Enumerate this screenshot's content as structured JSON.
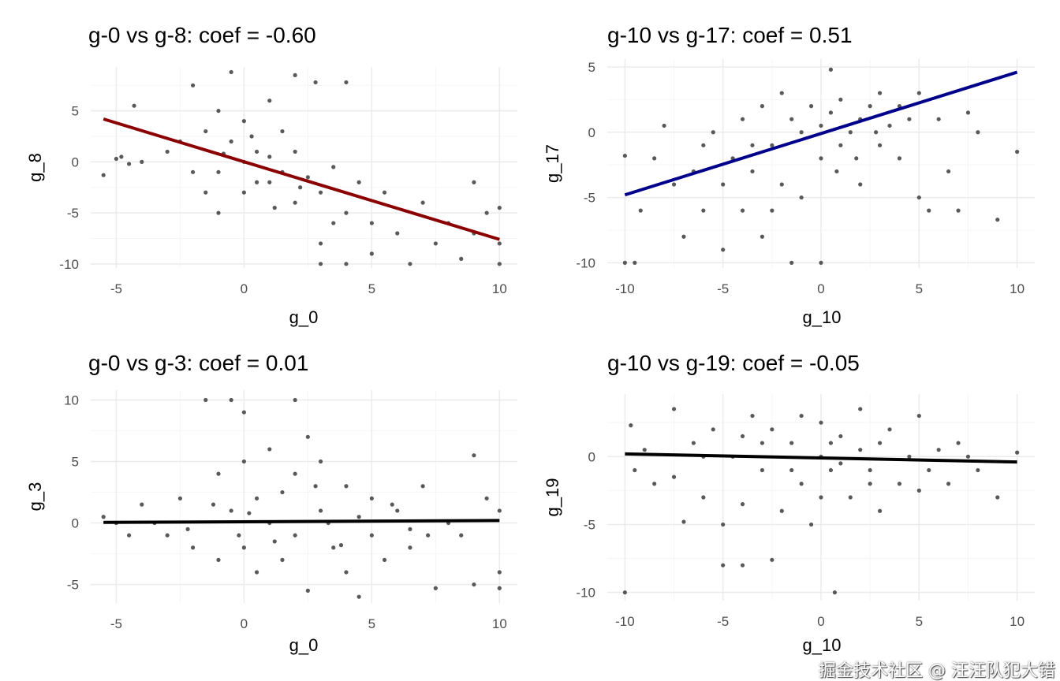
{
  "watermark": "掘金技术社区 @ 汪汪队犯大错",
  "colors": {
    "points": "#595959",
    "grid_major": "#ebebeb",
    "grid_minor": "#f5f5f5"
  },
  "chart_data": [
    {
      "type": "scatter",
      "title": "g-0 vs g-8: coef = -0.60",
      "xlabel": "g_0",
      "ylabel": "g_8",
      "xlim": [
        -6,
        10.7
      ],
      "ylim": [
        -10.4,
        9.3
      ],
      "xticks": [
        -5,
        0,
        5,
        10
      ],
      "yticks": [
        -10,
        -5,
        0,
        5
      ],
      "fit_line": {
        "color": "#8b0000",
        "x": [
          -5.5,
          10
        ],
        "y": [
          4.2,
          -7.6
        ]
      },
      "points": [
        [
          -5.5,
          -1.3
        ],
        [
          -5,
          0.3
        ],
        [
          -4.5,
          -0.2
        ],
        [
          -4.8,
          0.5
        ],
        [
          -4,
          0
        ],
        [
          -4.3,
          5.5
        ],
        [
          -3,
          1
        ],
        [
          -2.5,
          2
        ],
        [
          -2,
          7.5
        ],
        [
          -1.5,
          3
        ],
        [
          -1,
          5
        ],
        [
          -1,
          -1
        ],
        [
          -0.5,
          2
        ],
        [
          0,
          0
        ],
        [
          0,
          4
        ],
        [
          0,
          -3
        ],
        [
          0.5,
          1
        ],
        [
          0.5,
          -2
        ],
        [
          1,
          6
        ],
        [
          1,
          0.5
        ],
        [
          1.5,
          -1
        ],
        [
          1.5,
          3
        ],
        [
          2,
          8.5
        ],
        [
          2,
          -4
        ],
        [
          2,
          1
        ],
        [
          2.5,
          -1.5
        ],
        [
          3,
          -3
        ],
        [
          3,
          -8
        ],
        [
          3.5,
          -0.5
        ],
        [
          4,
          -5
        ],
        [
          4,
          -10
        ],
        [
          4.5,
          -2
        ],
        [
          5,
          -6
        ],
        [
          5,
          -9
        ],
        [
          5.5,
          -3
        ],
        [
          6,
          -7
        ],
        [
          6.5,
          -10
        ],
        [
          7,
          -4
        ],
        [
          7.5,
          -8
        ],
        [
          8,
          -6
        ],
        [
          8.5,
          -9.5
        ],
        [
          9,
          -2
        ],
        [
          9,
          -7
        ],
        [
          9.5,
          -5
        ],
        [
          10,
          -10
        ],
        [
          10,
          -4.5
        ],
        [
          10,
          -8
        ],
        [
          -0.5,
          8.8
        ],
        [
          4,
          7.8
        ],
        [
          2.8,
          7.8
        ],
        [
          -1,
          -5
        ],
        [
          3,
          -10
        ],
        [
          -2,
          -1
        ],
        [
          1,
          -2
        ],
        [
          0.3,
          2.5
        ],
        [
          -0.8,
          0.8
        ],
        [
          2.2,
          -2.5
        ],
        [
          3.5,
          -6
        ],
        [
          1.2,
          -4.5
        ],
        [
          -1.5,
          -3
        ]
      ]
    },
    {
      "type": "scatter",
      "title": "g-10 vs g-17: coef = 0.51",
      "xlabel": "g_10",
      "ylabel": "g_17",
      "xlim": [
        -10.9,
        10.9
      ],
      "ylim": [
        -10.4,
        5.6
      ],
      "xticks": [
        -10,
        -5,
        0,
        5,
        10
      ],
      "yticks": [
        -10,
        -5,
        0,
        5
      ],
      "fit_line": {
        "color": "#00008b",
        "x": [
          -10,
          10
        ],
        "y": [
          -4.8,
          4.6
        ]
      },
      "points": [
        [
          -10,
          -10
        ],
        [
          -9.5,
          -10
        ],
        [
          -10,
          -1.8
        ],
        [
          -9.2,
          -6
        ],
        [
          -8.5,
          -2
        ],
        [
          -8,
          0.5
        ],
        [
          -7.5,
          -4
        ],
        [
          -7,
          -8
        ],
        [
          -6.5,
          -3
        ],
        [
          -6,
          -6
        ],
        [
          -5.5,
          0
        ],
        [
          -5,
          -4
        ],
        [
          -5,
          -9
        ],
        [
          -4.5,
          -2
        ],
        [
          -4,
          1
        ],
        [
          -4,
          -6
        ],
        [
          -3.5,
          -3
        ],
        [
          -3,
          2
        ],
        [
          -3,
          -8
        ],
        [
          -2.5,
          -1
        ],
        [
          -2,
          -4
        ],
        [
          -2,
          3
        ],
        [
          -1.5,
          -10
        ],
        [
          -1,
          0
        ],
        [
          -1,
          -5
        ],
        [
          -0.5,
          2
        ],
        [
          0,
          0.5
        ],
        [
          0,
          -2
        ],
        [
          0,
          -10
        ],
        [
          0.5,
          1.5
        ],
        [
          0.5,
          4.8
        ],
        [
          1,
          -1
        ],
        [
          1,
          2.5
        ],
        [
          1.5,
          0
        ],
        [
          2,
          1
        ],
        [
          2,
          -4
        ],
        [
          2.5,
          2
        ],
        [
          3,
          -1
        ],
        [
          3,
          3
        ],
        [
          3.5,
          0.5
        ],
        [
          4,
          -2
        ],
        [
          4,
          2
        ],
        [
          4.5,
          1
        ],
        [
          5,
          -5
        ],
        [
          5,
          3
        ],
        [
          5.5,
          -6
        ],
        [
          6,
          1
        ],
        [
          6.5,
          -3
        ],
        [
          7,
          -6
        ],
        [
          7.5,
          1.5
        ],
        [
          8,
          0
        ],
        [
          9,
          -6.7
        ],
        [
          10,
          -1.5
        ],
        [
          -2.5,
          -6
        ],
        [
          -1.5,
          1
        ],
        [
          0.8,
          -3
        ],
        [
          -3.5,
          -1
        ],
        [
          1.8,
          -2
        ],
        [
          -6,
          -1
        ],
        [
          2.8,
          0
        ]
      ]
    },
    {
      "type": "scatter",
      "title": "g-0 vs g-3: coef = 0.01",
      "xlabel": "g_0",
      "ylabel": "g_3",
      "xlim": [
        -6,
        10.7
      ],
      "ylim": [
        -6.5,
        10.8
      ],
      "xticks": [
        -5,
        0,
        5,
        10
      ],
      "yticks": [
        -5,
        0,
        5,
        10
      ],
      "fit_line": {
        "color": "#000000",
        "x": [
          -5.5,
          10
        ],
        "y": [
          0.05,
          0.2
        ]
      },
      "points": [
        [
          -5.5,
          0.5
        ],
        [
          -5,
          0
        ],
        [
          -4.5,
          -1
        ],
        [
          -4,
          1.5
        ],
        [
          -3.5,
          0
        ],
        [
          -3,
          -1
        ],
        [
          -2.5,
          2
        ],
        [
          -2,
          -2
        ],
        [
          -1.5,
          10
        ],
        [
          -1,
          4
        ],
        [
          -1,
          -3
        ],
        [
          -0.5,
          1
        ],
        [
          -0.5,
          10
        ],
        [
          0,
          9
        ],
        [
          0,
          5
        ],
        [
          0,
          -2
        ],
        [
          0.5,
          2
        ],
        [
          0.5,
          -4
        ],
        [
          1,
          6
        ],
        [
          1,
          0
        ],
        [
          1.5,
          -3
        ],
        [
          2,
          10
        ],
        [
          2,
          4
        ],
        [
          2,
          -1
        ],
        [
          2.5,
          7
        ],
        [
          2.5,
          -5.5
        ],
        [
          3,
          5
        ],
        [
          3,
          1
        ],
        [
          3.5,
          -2
        ],
        [
          4,
          3
        ],
        [
          4,
          -4
        ],
        [
          4.5,
          -6
        ],
        [
          5,
          2
        ],
        [
          5,
          -1
        ],
        [
          5.5,
          -3
        ],
        [
          6,
          1
        ],
        [
          6.5,
          -2
        ],
        [
          7,
          3
        ],
        [
          7.5,
          -5.3
        ],
        [
          8,
          0
        ],
        [
          8.5,
          -1
        ],
        [
          9,
          5.5
        ],
        [
          9,
          -5
        ],
        [
          9.5,
          2
        ],
        [
          10,
          -5.3
        ],
        [
          10,
          -4
        ],
        [
          10,
          1
        ],
        [
          -2.2,
          -0.5
        ],
        [
          1.5,
          2.5
        ],
        [
          3.3,
          0
        ],
        [
          0.2,
          0.8
        ],
        [
          -1.2,
          1.5
        ],
        [
          4.5,
          0.5
        ],
        [
          6.5,
          -0.5
        ],
        [
          2.8,
          3
        ],
        [
          -0.2,
          -1
        ],
        [
          1.2,
          -1.5
        ],
        [
          3.8,
          -1.8
        ],
        [
          5.8,
          1.5
        ],
        [
          7.2,
          -1
        ]
      ]
    },
    {
      "type": "scatter",
      "title": "g-10 vs g-19: coef = -0.05",
      "xlabel": "g_10",
      "ylabel": "g_19",
      "xlim": [
        -10.9,
        10.9
      ],
      "ylim": [
        -10.6,
        4.6
      ],
      "xticks": [
        -10,
        -5,
        0,
        5,
        10
      ],
      "yticks": [
        -10,
        -5,
        0
      ],
      "fit_line": {
        "color": "#000000",
        "x": [
          -10,
          10
        ],
        "y": [
          0.2,
          -0.4
        ]
      },
      "points": [
        [
          -10,
          -10
        ],
        [
          -9.7,
          2.3
        ],
        [
          -9.5,
          -1
        ],
        [
          -9,
          0.5
        ],
        [
          -8.5,
          -2
        ],
        [
          -7.5,
          3.5
        ],
        [
          -7.5,
          -1.5
        ],
        [
          -7,
          -4.8
        ],
        [
          -6.5,
          1
        ],
        [
          -6,
          -3
        ],
        [
          -5.5,
          2
        ],
        [
          -5,
          -5
        ],
        [
          -5,
          -8
        ],
        [
          -4.5,
          0
        ],
        [
          -4,
          -3.5
        ],
        [
          -4,
          -8
        ],
        [
          -3.5,
          3
        ],
        [
          -3,
          -1
        ],
        [
          -2.5,
          -7.6
        ],
        [
          -2.5,
          2
        ],
        [
          -2,
          -4
        ],
        [
          -1.5,
          1
        ],
        [
          -1,
          -2
        ],
        [
          -1,
          3
        ],
        [
          -0.5,
          -5
        ],
        [
          0,
          0
        ],
        [
          0,
          2.5
        ],
        [
          0,
          -3
        ],
        [
          0.5,
          -1
        ],
        [
          0.7,
          -10
        ],
        [
          1,
          1.5
        ],
        [
          1.5,
          -3
        ],
        [
          2,
          0.5
        ],
        [
          2,
          3.5
        ],
        [
          2.5,
          -1
        ],
        [
          3,
          -4
        ],
        [
          3,
          1
        ],
        [
          3.5,
          2
        ],
        [
          4,
          -2
        ],
        [
          4.5,
          0
        ],
        [
          5,
          3
        ],
        [
          5,
          -2.5
        ],
        [
          5.5,
          -1
        ],
        [
          6,
          0.5
        ],
        [
          6.5,
          -2
        ],
        [
          7,
          1
        ],
        [
          7.5,
          0
        ],
        [
          8,
          -1
        ],
        [
          9,
          -3
        ],
        [
          10,
          0.3
        ],
        [
          -3,
          1
        ],
        [
          -1.5,
          -1
        ],
        [
          1,
          -0.5
        ],
        [
          -6,
          0
        ],
        [
          -4,
          1.5
        ],
        [
          2.5,
          -2
        ],
        [
          0.5,
          1
        ]
      ]
    }
  ]
}
